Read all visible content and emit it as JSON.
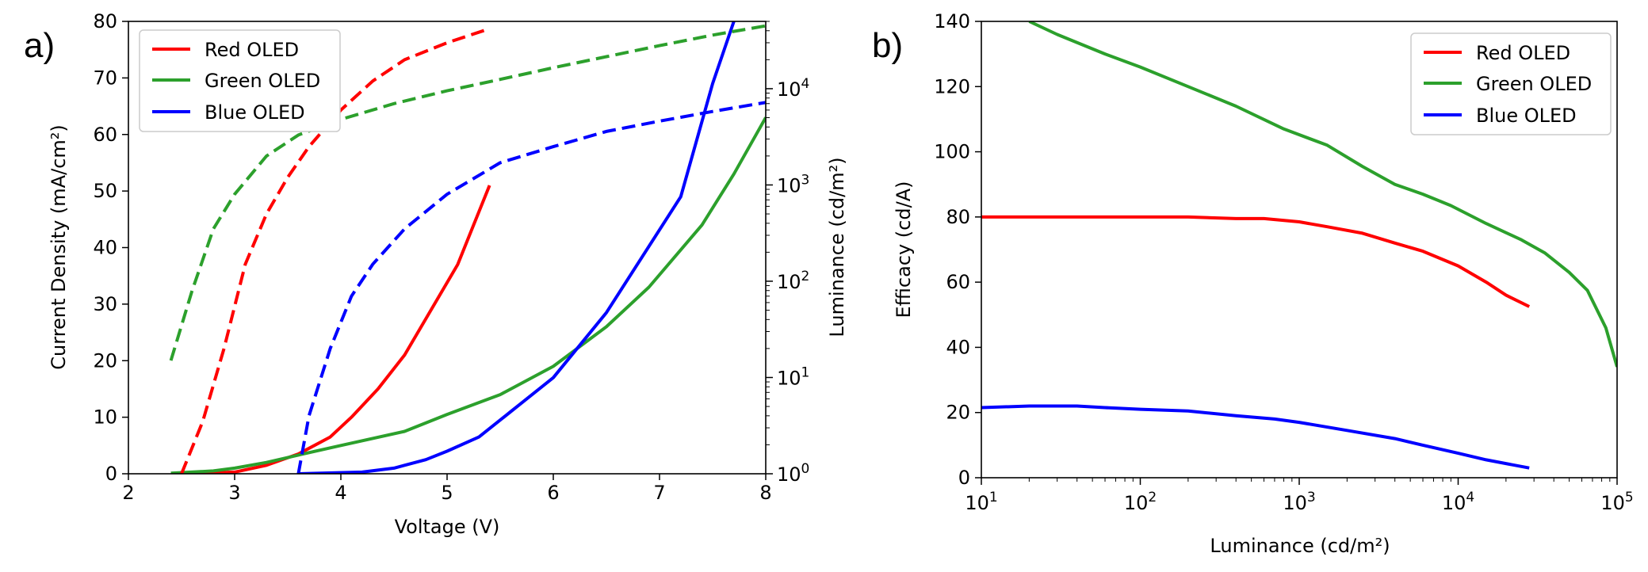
{
  "chart_data": [
    {
      "panel_label": "a)",
      "type": "line",
      "xlabel": "Voltage (V)",
      "ylabel_left": "Current Density (mA/cm²)",
      "ylabel_right": "Luminance (cd/m²)",
      "xlim": [
        2,
        8
      ],
      "ylim_left": [
        0,
        80
      ],
      "ylim_right": [
        1,
        50000
      ],
      "right_axis_scale": "log",
      "xticks": [
        "2",
        "3",
        "4",
        "5",
        "6",
        "7",
        "8"
      ],
      "yticks_left": [
        "0",
        "10",
        "20",
        "30",
        "40",
        "50",
        "60",
        "70",
        "80"
      ],
      "yticks_right": [
        {
          "base": "10",
          "exp": "0"
        },
        {
          "base": "10",
          "exp": "1"
        },
        {
          "base": "10",
          "exp": "2"
        },
        {
          "base": "10",
          "exp": "3"
        },
        {
          "base": "10",
          "exp": "4"
        }
      ],
      "legend": {
        "placement": "top-left",
        "entries": [
          "Red OLED",
          "Green OLED",
          "Blue OLED"
        ]
      },
      "colors": {
        "Red OLED": "#ff0000",
        "Green OLED": "#2ca02c",
        "Blue OLED": "#0000ff"
      },
      "series": [
        {
          "name": "Red OLED",
          "quantity": "current_density",
          "axis": "left",
          "style": "solid",
          "x": [
            2.5,
            3.0,
            3.3,
            3.6,
            3.9,
            4.1,
            4.35,
            4.6,
            4.85,
            5.1,
            5.25,
            5.4
          ],
          "y": [
            0,
            0.3,
            1.5,
            3.5,
            6.5,
            10,
            15,
            21,
            29,
            37,
            44,
            51
          ]
        },
        {
          "name": "Green OLED",
          "quantity": "current_density",
          "axis": "left",
          "style": "solid",
          "x": [
            2.4,
            2.8,
            3.0,
            3.3,
            3.6,
            4.0,
            4.6,
            5.0,
            5.5,
            6.0,
            6.5,
            6.9,
            7.4,
            7.7,
            8.0
          ],
          "y": [
            0.1,
            0.5,
            1,
            2,
            3.3,
            5,
            7.5,
            10.5,
            14,
            19,
            26,
            33,
            44,
            53,
            63
          ]
        },
        {
          "name": "Blue OLED",
          "quantity": "current_density",
          "axis": "left",
          "style": "solid",
          "x": [
            3.6,
            4.2,
            4.5,
            4.8,
            5.0,
            5.3,
            5.6,
            6.0,
            6.5,
            7.2,
            7.5,
            7.7
          ],
          "y": [
            0,
            0.3,
            1,
            2.5,
            4,
            6.5,
            11,
            17,
            28.5,
            49,
            69,
            80
          ]
        },
        {
          "name": "Red OLED",
          "quantity": "luminance",
          "axis": "right",
          "style": "dashed",
          "x": [
            2.5,
            2.7,
            2.9,
            3.1,
            3.3,
            3.5,
            3.7,
            4.0,
            4.3,
            4.6,
            5.0,
            5.4
          ],
          "y": [
            1,
            3.5,
            20,
            150,
            500,
            1200,
            2500,
            6000,
            12000,
            20000,
            30000,
            42000
          ]
        },
        {
          "name": "Green OLED",
          "quantity": "luminance",
          "axis": "right",
          "style": "dashed",
          "x": [
            2.4,
            2.6,
            2.8,
            3.0,
            3.3,
            3.6,
            4.0,
            4.5,
            5.0,
            5.5,
            6.0,
            6.5,
            7.0,
            7.5,
            8.0
          ],
          "y": [
            15,
            80,
            350,
            800,
            2000,
            3300,
            4800,
            7000,
            9500,
            12500,
            16500,
            21500,
            28000,
            36000,
            45000
          ]
        },
        {
          "name": "Blue OLED",
          "quantity": "luminance",
          "axis": "right",
          "style": "dashed",
          "x": [
            3.6,
            3.7,
            3.9,
            4.1,
            4.3,
            4.6,
            5.0,
            5.5,
            6.0,
            6.5,
            7.0,
            7.5,
            8.0
          ],
          "y": [
            1,
            4,
            20,
            70,
            150,
            350,
            800,
            1700,
            2500,
            3600,
            4600,
            5800,
            7200
          ]
        }
      ]
    },
    {
      "panel_label": "b)",
      "type": "line",
      "xlabel": "Luminance (cd/m²)",
      "ylabel": "Efficacy (cd/A)",
      "xscale": "log",
      "xlim": [
        10,
        100000
      ],
      "ylim": [
        0,
        140
      ],
      "xticks": [
        {
          "base": "10",
          "exp": "1"
        },
        {
          "base": "10",
          "exp": "2"
        },
        {
          "base": "10",
          "exp": "3"
        },
        {
          "base": "10",
          "exp": "4"
        },
        {
          "base": "10",
          "exp": "5"
        }
      ],
      "yticks": [
        "0",
        "20",
        "40",
        "60",
        "80",
        "100",
        "120",
        "140"
      ],
      "legend": {
        "placement": "top-right",
        "entries": [
          "Red OLED",
          "Green OLED",
          "Blue OLED"
        ]
      },
      "colors": {
        "Red OLED": "#ff0000",
        "Green OLED": "#2ca02c",
        "Blue OLED": "#0000ff"
      },
      "series": [
        {
          "name": "Red OLED",
          "x": [
            10,
            100,
            200,
            400,
            600,
            1000,
            1500,
            2500,
            4000,
            6000,
            10000,
            15000,
            20000,
            28000
          ],
          "y": [
            80,
            80,
            80,
            79.5,
            79.5,
            78.5,
            77,
            75,
            72,
            69.5,
            65,
            60,
            56,
            52.5
          ]
        },
        {
          "name": "Green OLED",
          "x": [
            20,
            30,
            60,
            100,
            200,
            400,
            800,
            1500,
            2500,
            4000,
            6000,
            9000,
            15000,
            25000,
            35000,
            50000,
            65000,
            85000,
            100000
          ],
          "y": [
            140,
            136,
            130,
            126,
            120,
            114,
            107,
            102,
            95.5,
            90,
            87,
            83.5,
            78,
            73,
            69,
            63,
            57.5,
            46,
            34
          ]
        },
        {
          "name": "Blue OLED",
          "x": [
            10,
            20,
            40,
            60,
            100,
            200,
            400,
            700,
            1000,
            2000,
            4000,
            6000,
            10000,
            15000,
            28000
          ],
          "y": [
            21.5,
            22,
            22,
            21.5,
            21,
            20.5,
            19,
            18,
            17,
            14.5,
            12,
            10,
            7.5,
            5.5,
            3
          ]
        }
      ]
    }
  ]
}
